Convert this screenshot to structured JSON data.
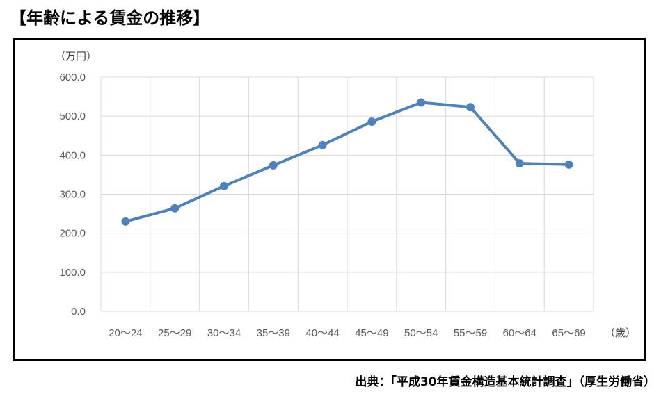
{
  "page": {
    "title": "【年齢による賃金の推移】",
    "source": "出典：「平成30年賃金構造基本統計調査」（厚生労働省）"
  },
  "colors": {
    "series_line": "#4F81BD",
    "gridline": "#D9D9D9",
    "tick_text": "#595959"
  },
  "chart_data": {
    "type": "line",
    "title": "",
    "ylabel": "（万円）",
    "xlabel": "（歳）",
    "categories": [
      "20～24",
      "25～29",
      "30～34",
      "35～39",
      "40～44",
      "45～49",
      "50～54",
      "55～59",
      "60～64",
      "65～69"
    ],
    "y_ticks": [
      "0.0",
      "100.0",
      "200.0",
      "300.0",
      "400.0",
      "500.0",
      "600.0"
    ],
    "ylim": [
      0,
      600
    ],
    "grid": true,
    "legend": "none",
    "series": [
      {
        "values": [
          230,
          264,
          321,
          374,
          426,
          486,
          535,
          523,
          379,
          376
        ]
      }
    ]
  }
}
